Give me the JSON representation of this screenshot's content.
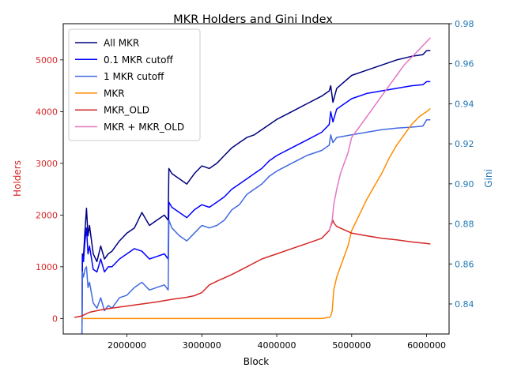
{
  "chart_data": {
    "type": "line",
    "title": "MKR Holders and Gini Index",
    "xlabel": "Block",
    "ylabel_left": "Holders",
    "ylabel_right": "Gini",
    "xlim": [
      1150000,
      6300000
    ],
    "ylim_left": [
      -300,
      5700
    ],
    "ylim_right": [
      0.825,
      0.98
    ],
    "x_ticks": [
      2000000,
      3000000,
      4000000,
      5000000,
      6000000
    ],
    "x_tick_labels": [
      "2000000",
      "3000000",
      "4000000",
      "5000000",
      "6000000"
    ],
    "y_left_ticks": [
      0,
      1000,
      2000,
      3000,
      4000,
      5000
    ],
    "y_left_tick_labels": [
      "0",
      "1000",
      "2000",
      "3000",
      "4000",
      "5000"
    ],
    "y_right_ticks": [
      0.84,
      0.86,
      0.88,
      0.9,
      0.92,
      0.94,
      0.96,
      0.98
    ],
    "y_right_tick_labels": [
      "0.84",
      "0.86",
      "0.88",
      "0.90",
      "0.92",
      "0.94",
      "0.96",
      "0.98"
    ],
    "left_axis_color": "#d62728",
    "right_axis_color": "#1f77b4",
    "legend_position": "top-left",
    "grid": false,
    "series": [
      {
        "name": "All MKR",
        "color": "#00007f",
        "x": [
          1400000,
          1405000,
          1420000,
          1440000,
          1460000,
          1480000,
          1500000,
          1550000,
          1600000,
          1650000,
          1700000,
          1750000,
          1800000,
          1900000,
          2000000,
          2100000,
          2200000,
          2300000,
          2400000,
          2500000,
          2550000,
          2560000,
          2600000,
          2700000,
          2800000,
          2900000,
          3000000,
          3100000,
          3200000,
          3300000,
          3400000,
          3500000,
          3600000,
          3700000,
          3800000,
          3900000,
          4000000,
          4200000,
          4400000,
          4600000,
          4700000,
          4720000,
          4750000,
          4800000,
          5000000,
          5200000,
          5400000,
          5600000,
          5800000,
          5950000,
          6000000,
          6050000
        ],
        "y": [
          -300,
          1250,
          1200,
          1700,
          2130,
          1600,
          1800,
          1250,
          1100,
          1400,
          1150,
          1250,
          1300,
          1500,
          1650,
          1750,
          2050,
          1800,
          1900,
          2000,
          1900,
          2900,
          2800,
          2700,
          2600,
          2800,
          2950,
          2900,
          3000,
          3150,
          3300,
          3400,
          3500,
          3550,
          3650,
          3750,
          3850,
          4000,
          4150,
          4300,
          4400,
          4500,
          4180,
          4450,
          4700,
          4800,
          4900,
          5000,
          5070,
          5100,
          5180,
          5180
        ]
      },
      {
        "name": "0.1 MKR cutoff",
        "color": "#0000ff",
        "x": [
          1400000,
          1405000,
          1420000,
          1440000,
          1460000,
          1480000,
          1500000,
          1550000,
          1600000,
          1650000,
          1700000,
          1750000,
          1800000,
          1900000,
          2000000,
          2100000,
          2200000,
          2300000,
          2400000,
          2500000,
          2550000,
          2560000,
          2600000,
          2700000,
          2800000,
          2900000,
          3000000,
          3100000,
          3200000,
          3300000,
          3400000,
          3500000,
          3600000,
          3700000,
          3800000,
          3900000,
          4000000,
          4200000,
          4400000,
          4600000,
          4700000,
          4720000,
          4750000,
          4800000,
          5000000,
          5200000,
          5400000,
          5600000,
          5800000,
          5950000,
          6000000,
          6050000
        ],
        "y": [
          -300,
          1200,
          1100,
          1500,
          1750,
          1250,
          1400,
          950,
          900,
          1150,
          900,
          1000,
          1000,
          1150,
          1250,
          1350,
          1300,
          1150,
          1200,
          1250,
          1150,
          2250,
          2150,
          2050,
          1950,
          2100,
          2200,
          2150,
          2250,
          2350,
          2500,
          2600,
          2700,
          2800,
          2900,
          3050,
          3150,
          3300,
          3450,
          3600,
          3750,
          4000,
          3800,
          4050,
          4250,
          4350,
          4400,
          4450,
          4500,
          4520,
          4580,
          4580
        ]
      },
      {
        "name": "1 MKR cutoff",
        "color": "#4169e1",
        "x": [
          1400000,
          1405000,
          1420000,
          1440000,
          1460000,
          1480000,
          1500000,
          1550000,
          1600000,
          1650000,
          1700000,
          1750000,
          1800000,
          1900000,
          2000000,
          2100000,
          2200000,
          2300000,
          2400000,
          2500000,
          2550000,
          2560000,
          2600000,
          2700000,
          2800000,
          2900000,
          3000000,
          3100000,
          3200000,
          3300000,
          3400000,
          3500000,
          3600000,
          3700000,
          3800000,
          3900000,
          4000000,
          4200000,
          4400000,
          4600000,
          4700000,
          4720000,
          4750000,
          4800000,
          5000000,
          5200000,
          5400000,
          5600000,
          5800000,
          5950000,
          6000000,
          6050000
        ],
        "y": [
          -300,
          900,
          800,
          950,
          1000,
          600,
          700,
          300,
          200,
          400,
          150,
          250,
          200,
          400,
          450,
          600,
          700,
          550,
          600,
          650,
          550,
          1900,
          1750,
          1600,
          1500,
          1650,
          1800,
          1750,
          1800,
          1900,
          2100,
          2200,
          2400,
          2500,
          2600,
          2750,
          2850,
          3000,
          3150,
          3250,
          3350,
          3550,
          3400,
          3500,
          3550,
          3600,
          3650,
          3680,
          3700,
          3720,
          3840,
          3840
        ]
      },
      {
        "name": "MKR",
        "color": "#ff8c00",
        "x": [
          1400000,
          2000000,
          3000000,
          4000000,
          4600000,
          4700000,
          4720000,
          4740000,
          4760000,
          4800000,
          4850000,
          4900000,
          4950000,
          5000000,
          5100000,
          5200000,
          5300000,
          5400000,
          5500000,
          5600000,
          5700000,
          5800000,
          5900000,
          6000000,
          6050000
        ],
        "y": [
          0,
          0,
          0,
          0,
          0,
          20,
          50,
          150,
          550,
          800,
          1000,
          1200,
          1400,
          1700,
          2000,
          2300,
          2550,
          2800,
          3100,
          3350,
          3550,
          3750,
          3900,
          4000,
          4060
        ]
      },
      {
        "name": "MKR_OLD",
        "color": "#d62728",
        "x": [
          1300000,
          1400000,
          1500000,
          1600000,
          1700000,
          1800000,
          1900000,
          2000000,
          2200000,
          2400000,
          2600000,
          2800000,
          2900000,
          3000000,
          3100000,
          3200000,
          3400000,
          3600000,
          3800000,
          4000000,
          4200000,
          4400000,
          4600000,
          4700000,
          4750000,
          4760000,
          4800000,
          5000000,
          5200000,
          5400000,
          5600000,
          5800000,
          6000000,
          6050000
        ],
        "y": [
          20,
          50,
          120,
          150,
          180,
          200,
          220,
          240,
          280,
          320,
          370,
          410,
          440,
          500,
          650,
          720,
          850,
          1000,
          1150,
          1250,
          1350,
          1450,
          1550,
          1700,
          1900,
          1850,
          1780,
          1650,
          1600,
          1550,
          1520,
          1480,
          1450,
          1440
        ]
      },
      {
        "name": "MKR + MKR_OLD",
        "color": "#e377c2",
        "x": [
          4700000,
          4740000,
          4760000,
          4800000,
          4850000,
          4900000,
          4950000,
          5000000,
          5100000,
          5200000,
          5300000,
          5400000,
          5500000,
          5600000,
          5700000,
          5800000,
          5900000,
          6000000,
          6050000
        ],
        "y": [
          1700,
          1900,
          2200,
          2500,
          2800,
          3000,
          3200,
          3500,
          3700,
          3900,
          4100,
          4300,
          4500,
          4700,
          4900,
          5050,
          5200,
          5350,
          5430
        ]
      }
    ]
  }
}
